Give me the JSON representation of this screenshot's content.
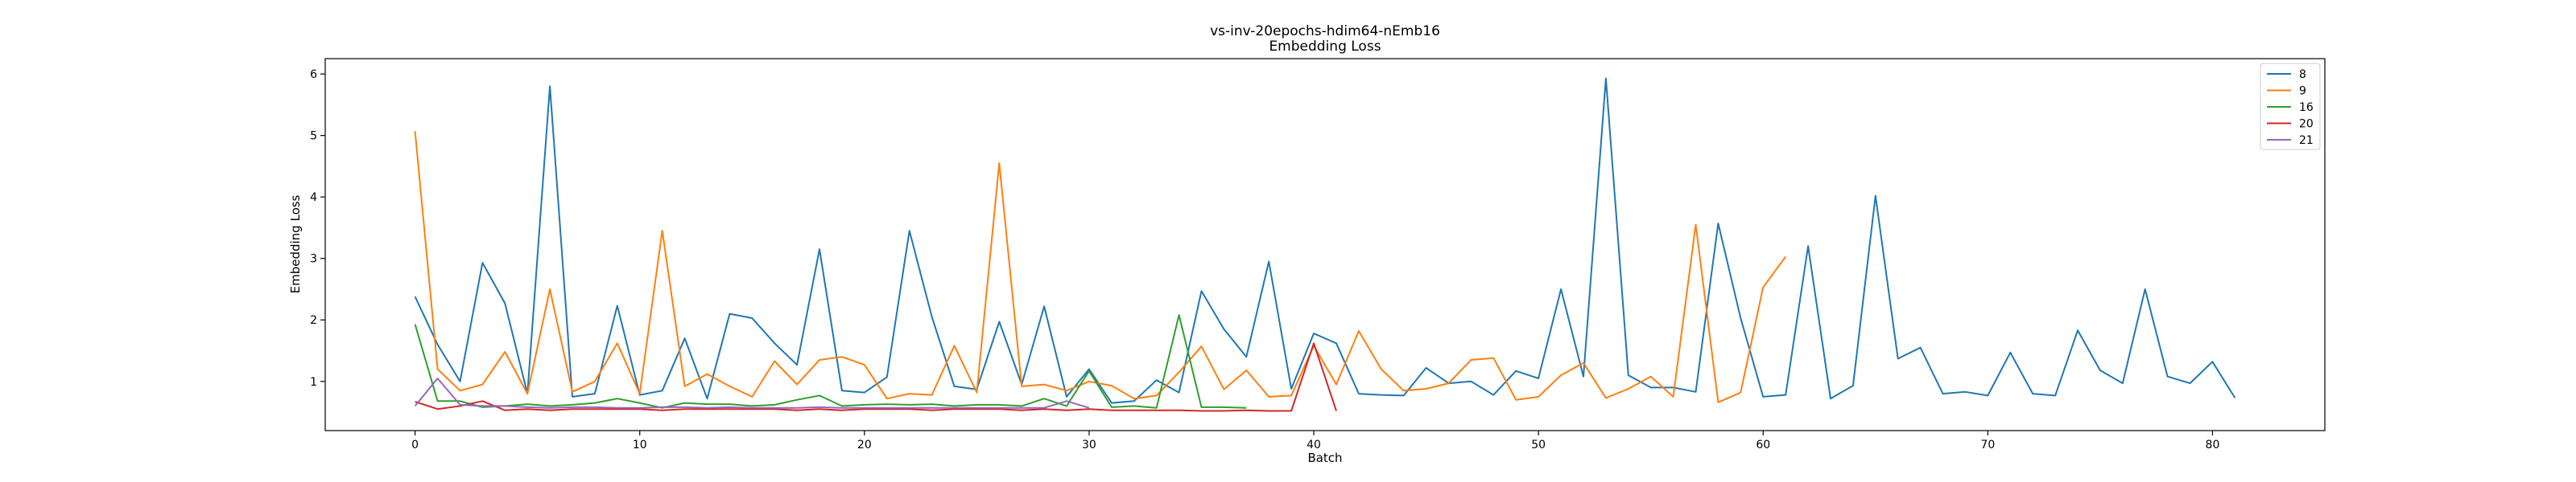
{
  "chart_data": {
    "type": "line",
    "title": "vs-inv-20epochs-hdim64-nEmb16",
    "subtitle": "Embedding Loss",
    "xlabel": "Batch",
    "ylabel": "Embedding Loss",
    "xlim": [
      -4,
      85
    ],
    "ylim": [
      0.2,
      6.25
    ],
    "xticks": [
      0,
      10,
      20,
      30,
      40,
      50,
      60,
      70,
      80
    ],
    "yticks": [
      1,
      2,
      3,
      4,
      5,
      6
    ],
    "grid": false,
    "legend_position": "top-right",
    "series": [
      {
        "name": "8",
        "color": "#1f77b4",
        "values": [
          2.38,
          1.6,
          1.0,
          2.93,
          2.27,
          0.8,
          5.8,
          0.75,
          0.8,
          2.23,
          0.78,
          0.85,
          1.7,
          0.72,
          2.1,
          2.03,
          1.62,
          1.27,
          3.15,
          0.85,
          0.82,
          1.07,
          3.45,
          2.05,
          0.92,
          0.87,
          1.97,
          0.95,
          2.22,
          0.75,
          1.2,
          0.65,
          0.68,
          1.02,
          0.82,
          2.47,
          1.85,
          1.4,
          2.95,
          0.88,
          1.78,
          1.62,
          0.8,
          0.78,
          0.77,
          1.22,
          0.97,
          1.0,
          0.78,
          1.17,
          1.05,
          2.5,
          1.08,
          5.93,
          1.1,
          0.9,
          0.9,
          0.83,
          3.57,
          2.03,
          0.75,
          0.78,
          3.2,
          0.72,
          0.93,
          4.02,
          1.37,
          1.55,
          0.8,
          0.83,
          0.77,
          1.47,
          0.8,
          0.77,
          1.83,
          1.18,
          0.97,
          2.5,
          1.08,
          0.97,
          1.32,
          0.73
        ]
      },
      {
        "name": "9",
        "color": "#ff7f0e",
        "values": [
          5.07,
          1.2,
          0.85,
          0.95,
          1.48,
          0.8,
          2.5,
          0.83,
          1.0,
          1.62,
          0.8,
          3.45,
          0.92,
          1.12,
          0.92,
          0.75,
          1.33,
          0.95,
          1.35,
          1.4,
          1.27,
          0.72,
          0.8,
          0.78,
          1.58,
          0.82,
          4.55,
          0.92,
          0.95,
          0.85,
          1.0,
          0.93,
          0.72,
          0.77,
          1.15,
          1.57,
          0.87,
          1.18,
          0.75,
          0.77,
          1.58,
          0.95,
          1.82,
          1.2,
          0.85,
          0.88,
          0.97,
          1.35,
          1.38,
          0.7,
          0.75,
          1.1,
          1.3,
          0.73,
          0.88,
          1.08,
          0.75,
          3.55,
          0.66,
          0.82,
          2.53,
          3.03
        ]
      },
      {
        "name": "16",
        "color": "#2ca02c",
        "values": [
          1.93,
          0.68,
          0.68,
          0.58,
          0.6,
          0.63,
          0.6,
          0.62,
          0.65,
          0.72,
          0.65,
          0.57,
          0.65,
          0.63,
          0.63,
          0.6,
          0.62,
          0.7,
          0.77,
          0.6,
          0.62,
          0.63,
          0.62,
          0.63,
          0.6,
          0.62,
          0.62,
          0.6,
          0.72,
          0.6,
          1.17,
          0.58,
          0.6,
          0.57,
          2.08,
          0.58,
          0.58,
          0.57
        ]
      },
      {
        "name": "20",
        "color": "#d62728",
        "values": [
          0.67,
          0.55,
          0.6,
          0.68,
          0.53,
          0.55,
          0.53,
          0.55,
          0.55,
          0.55,
          0.55,
          0.53,
          0.55,
          0.55,
          0.55,
          0.55,
          0.55,
          0.53,
          0.55,
          0.53,
          0.55,
          0.55,
          0.55,
          0.53,
          0.55,
          0.55,
          0.55,
          0.53,
          0.55,
          0.53,
          0.55,
          0.53,
          0.53,
          0.53,
          0.53,
          0.52,
          0.52,
          0.53,
          0.52,
          0.52,
          1.62,
          0.52
        ]
      },
      {
        "name": "21",
        "color": "#9467bd",
        "values": [
          0.6,
          1.05,
          0.62,
          0.6,
          0.6,
          0.58,
          0.57,
          0.58,
          0.58,
          0.57,
          0.57,
          0.58,
          0.58,
          0.57,
          0.58,
          0.57,
          0.57,
          0.57,
          0.58,
          0.57,
          0.57,
          0.57,
          0.57,
          0.57,
          0.57,
          0.57,
          0.57,
          0.57,
          0.57,
          0.68,
          0.57
        ]
      }
    ]
  }
}
